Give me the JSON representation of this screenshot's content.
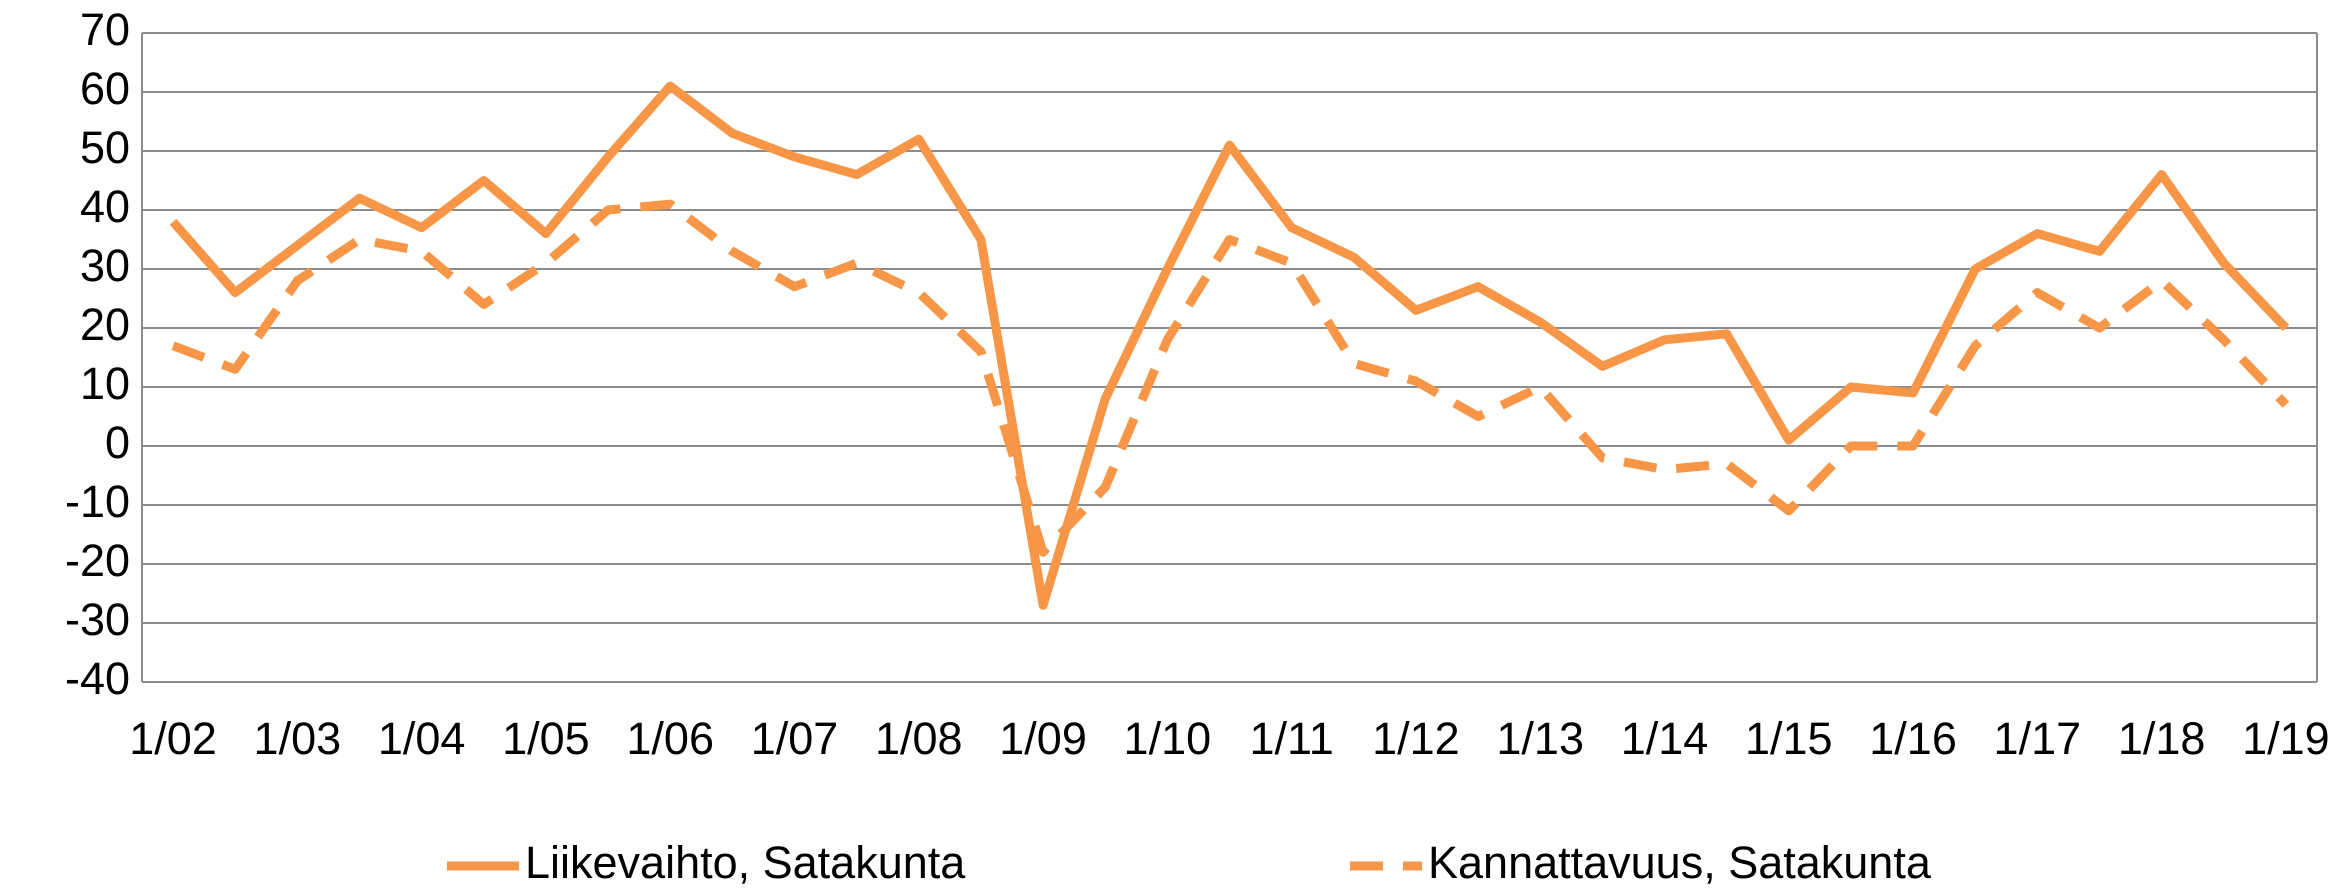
{
  "chart_data": {
    "type": "line",
    "categories": [
      "1/02",
      null,
      "1/03",
      null,
      "1/04",
      null,
      "1/05",
      null,
      "1/06",
      null,
      "1/07",
      null,
      "1/08",
      null,
      "1/09",
      null,
      "1/10",
      null,
      "1/11",
      null,
      "1/12",
      null,
      "1/13",
      null,
      "1/14",
      null,
      "1/15",
      null,
      "1/16",
      null,
      "1/17",
      null,
      "1/18",
      null,
      "1/19"
    ],
    "series": [
      {
        "name": "Liikevaihto, Satakunta",
        "color": "#f79646",
        "dash": false,
        "values": [
          38,
          26,
          34,
          42,
          37,
          45,
          36,
          49,
          61,
          53,
          49,
          46,
          52,
          35,
          -27,
          8,
          30,
          51,
          37,
          32,
          23,
          27,
          21,
          13.5,
          18,
          19,
          1,
          10,
          9,
          30,
          36,
          33,
          46,
          31,
          20
        ]
      },
      {
        "name": "Kannattavuus, Satakunta",
        "color": "#f79646",
        "dash": true,
        "values": [
          17,
          13,
          28,
          35,
          33,
          24,
          31,
          40,
          41,
          33,
          27,
          31,
          26,
          16,
          -18,
          -7,
          18,
          35,
          31,
          14,
          11,
          5,
          10,
          -2,
          -4,
          -3,
          -11,
          0,
          0,
          17,
          26,
          20,
          28,
          18,
          7
        ]
      }
    ],
    "ylim": [
      -40,
      70
    ],
    "yticks": [
      -40,
      -30,
      -20,
      -10,
      0,
      10,
      20,
      30,
      40,
      50,
      60,
      70
    ],
    "grid": true,
    "legend": "bottom"
  }
}
